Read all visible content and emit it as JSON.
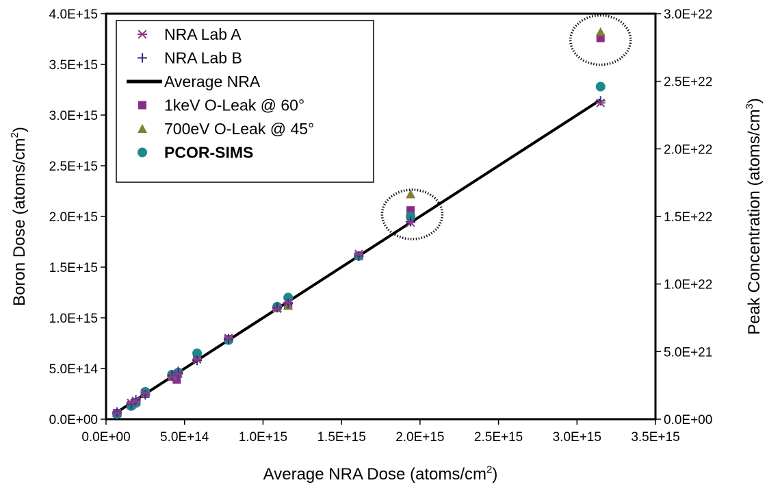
{
  "chart_data": {
    "type": "scatter",
    "xlabel": "Average NRA Dose (atoms/cm",
    "xlabel_sup": "2",
    "xlabel_end": ")",
    "ylabel": "Boron Dose (atoms/cm",
    "ylabel_sup": "2",
    "ylabel_end": ")",
    "y2label": "Peak Concentration (atoms/cm",
    "y2label_sup": "3",
    "y2label_end": ")",
    "xlim": [
      0,
      3500000000000000.0
    ],
    "ylim": [
      0,
      4000000000000000.0
    ],
    "y2lim": [
      0,
      3e+22
    ],
    "x_ticks": [
      "0.0E+00",
      "5.0E+14",
      "1.0E+15",
      "1.5E+15",
      "2.0E+15",
      "2.5E+15",
      "3.0E+15",
      "3.5E+15"
    ],
    "y_ticks": [
      "0.0E+00",
      "5.0E+14",
      "1.0E+15",
      "1.5E+15",
      "2.0E+15",
      "2.5E+15",
      "3.0E+15",
      "3.5E+15",
      "4.0E+15"
    ],
    "y2_ticks": [
      "0.0E+00",
      "5.0E+21",
      "1.0E+22",
      "1.5E+22",
      "2.0E+22",
      "2.5E+22",
      "3.0E+22"
    ],
    "grid": false,
    "legend_position": "top-left",
    "series": [
      {
        "name": "NRA Lab A",
        "marker": "asterisk",
        "color": "#8b3a8b",
        "x": [
          70000000000000.0,
          160000000000000.0,
          190000000000000.0,
          250000000000000.0,
          420000000000000.0,
          460000000000000.0,
          580000000000000.0,
          780000000000000.0,
          1090000000000000.0,
          1160000000000000.0,
          1610000000000000.0,
          1940000000000000.0,
          3150000000000000.0
        ],
        "y": [
          60000000000000.0,
          160000000000000.0,
          180000000000000.0,
          260000000000000.0,
          420000000000000.0,
          450000000000000.0,
          590000000000000.0,
          800000000000000.0,
          1090000000000000.0,
          1150000000000000.0,
          1630000000000000.0,
          1940000000000000.0,
          3120000000000000.0
        ]
      },
      {
        "name": "NRA Lab B",
        "marker": "plus",
        "color": "#2e2e7a",
        "x": [
          70000000000000.0,
          160000000000000.0,
          190000000000000.0,
          250000000000000.0,
          420000000000000.0,
          460000000000000.0,
          580000000000000.0,
          780000000000000.0,
          1090000000000000.0,
          1160000000000000.0,
          1610000000000000.0,
          1940000000000000.0,
          3150000000000000.0
        ],
        "y": [
          70000000000000.0,
          150000000000000.0,
          190000000000000.0,
          240000000000000.0,
          430000000000000.0,
          460000000000000.0,
          580000000000000.0,
          790000000000000.0,
          1100000000000000.0,
          1140000000000000.0,
          1610000000000000.0,
          1950000000000000.0,
          3140000000000000.0
        ]
      },
      {
        "name": "Average NRA",
        "marker": "line",
        "color": "#000000",
        "x": [
          70000000000000.0,
          3150000000000000.0
        ],
        "y": [
          70000000000000.0,
          3150000000000000.0
        ]
      },
      {
        "name": "1keV O-Leak @ 60°",
        "marker": "square",
        "color": "#8b2a8b",
        "x": [
          70000000000000.0,
          160000000000000.0,
          190000000000000.0,
          250000000000000.0,
          420000000000000.0,
          450000000000000.0,
          580000000000000.0,
          780000000000000.0,
          1090000000000000.0,
          1160000000000000.0,
          1610000000000000.0,
          1940000000000000.0,
          3150000000000000.0
        ],
        "y": [
          60000000000000.0,
          140000000000000.0,
          170000000000000.0,
          250000000000000.0,
          420000000000000.0,
          390000000000000.0,
          610000000000000.0,
          790000000000000.0,
          1100000000000000.0,
          1120000000000000.0,
          1610000000000000.0,
          2060000000000000.0,
          3760000000000000.0
        ]
      },
      {
        "name": "700eV O-Leak @ 45°",
        "marker": "triangle",
        "color": "#808033",
        "x": [
          70000000000000.0,
          160000000000000.0,
          190000000000000.0,
          250000000000000.0,
          420000000000000.0,
          460000000000000.0,
          580000000000000.0,
          780000000000000.0,
          1090000000000000.0,
          1160000000000000.0,
          1610000000000000.0,
          1940000000000000.0,
          3150000000000000.0
        ],
        "y": [
          60000000000000.0,
          140000000000000.0,
          170000000000000.0,
          260000000000000.0,
          430000000000000.0,
          480000000000000.0,
          630000000000000.0,
          800000000000000.0,
          1100000000000000.0,
          1120000000000000.0,
          1610000000000000.0,
          2220000000000000.0,
          3820000000000000.0
        ]
      },
      {
        "name": "PCOR-SIMS",
        "marker": "circle",
        "color": "#1a8a8a",
        "bold": true,
        "x": [
          70000000000000.0,
          160000000000000.0,
          190000000000000.0,
          250000000000000.0,
          420000000000000.0,
          460000000000000.0,
          580000000000000.0,
          780000000000000.0,
          1090000000000000.0,
          1160000000000000.0,
          1610000000000000.0,
          1940000000000000.0,
          3150000000000000.0
        ],
        "y": [
          50000000000000.0,
          130000000000000.0,
          160000000000000.0,
          270000000000000.0,
          440000000000000.0,
          460000000000000.0,
          650000000000000.0,
          780000000000000.0,
          1110000000000000.0,
          1200000000000000.0,
          1610000000000000.0,
          2000000000000000.0,
          3280000000000000.0
        ]
      }
    ],
    "annotations": [
      {
        "type": "dotted-ellipse",
        "x": 1950000000000000.0,
        "y": 2020000000000000.0
      },
      {
        "type": "dotted-ellipse",
        "x": 3150000000000000.0,
        "y": 3740000000000000.0
      }
    ]
  }
}
